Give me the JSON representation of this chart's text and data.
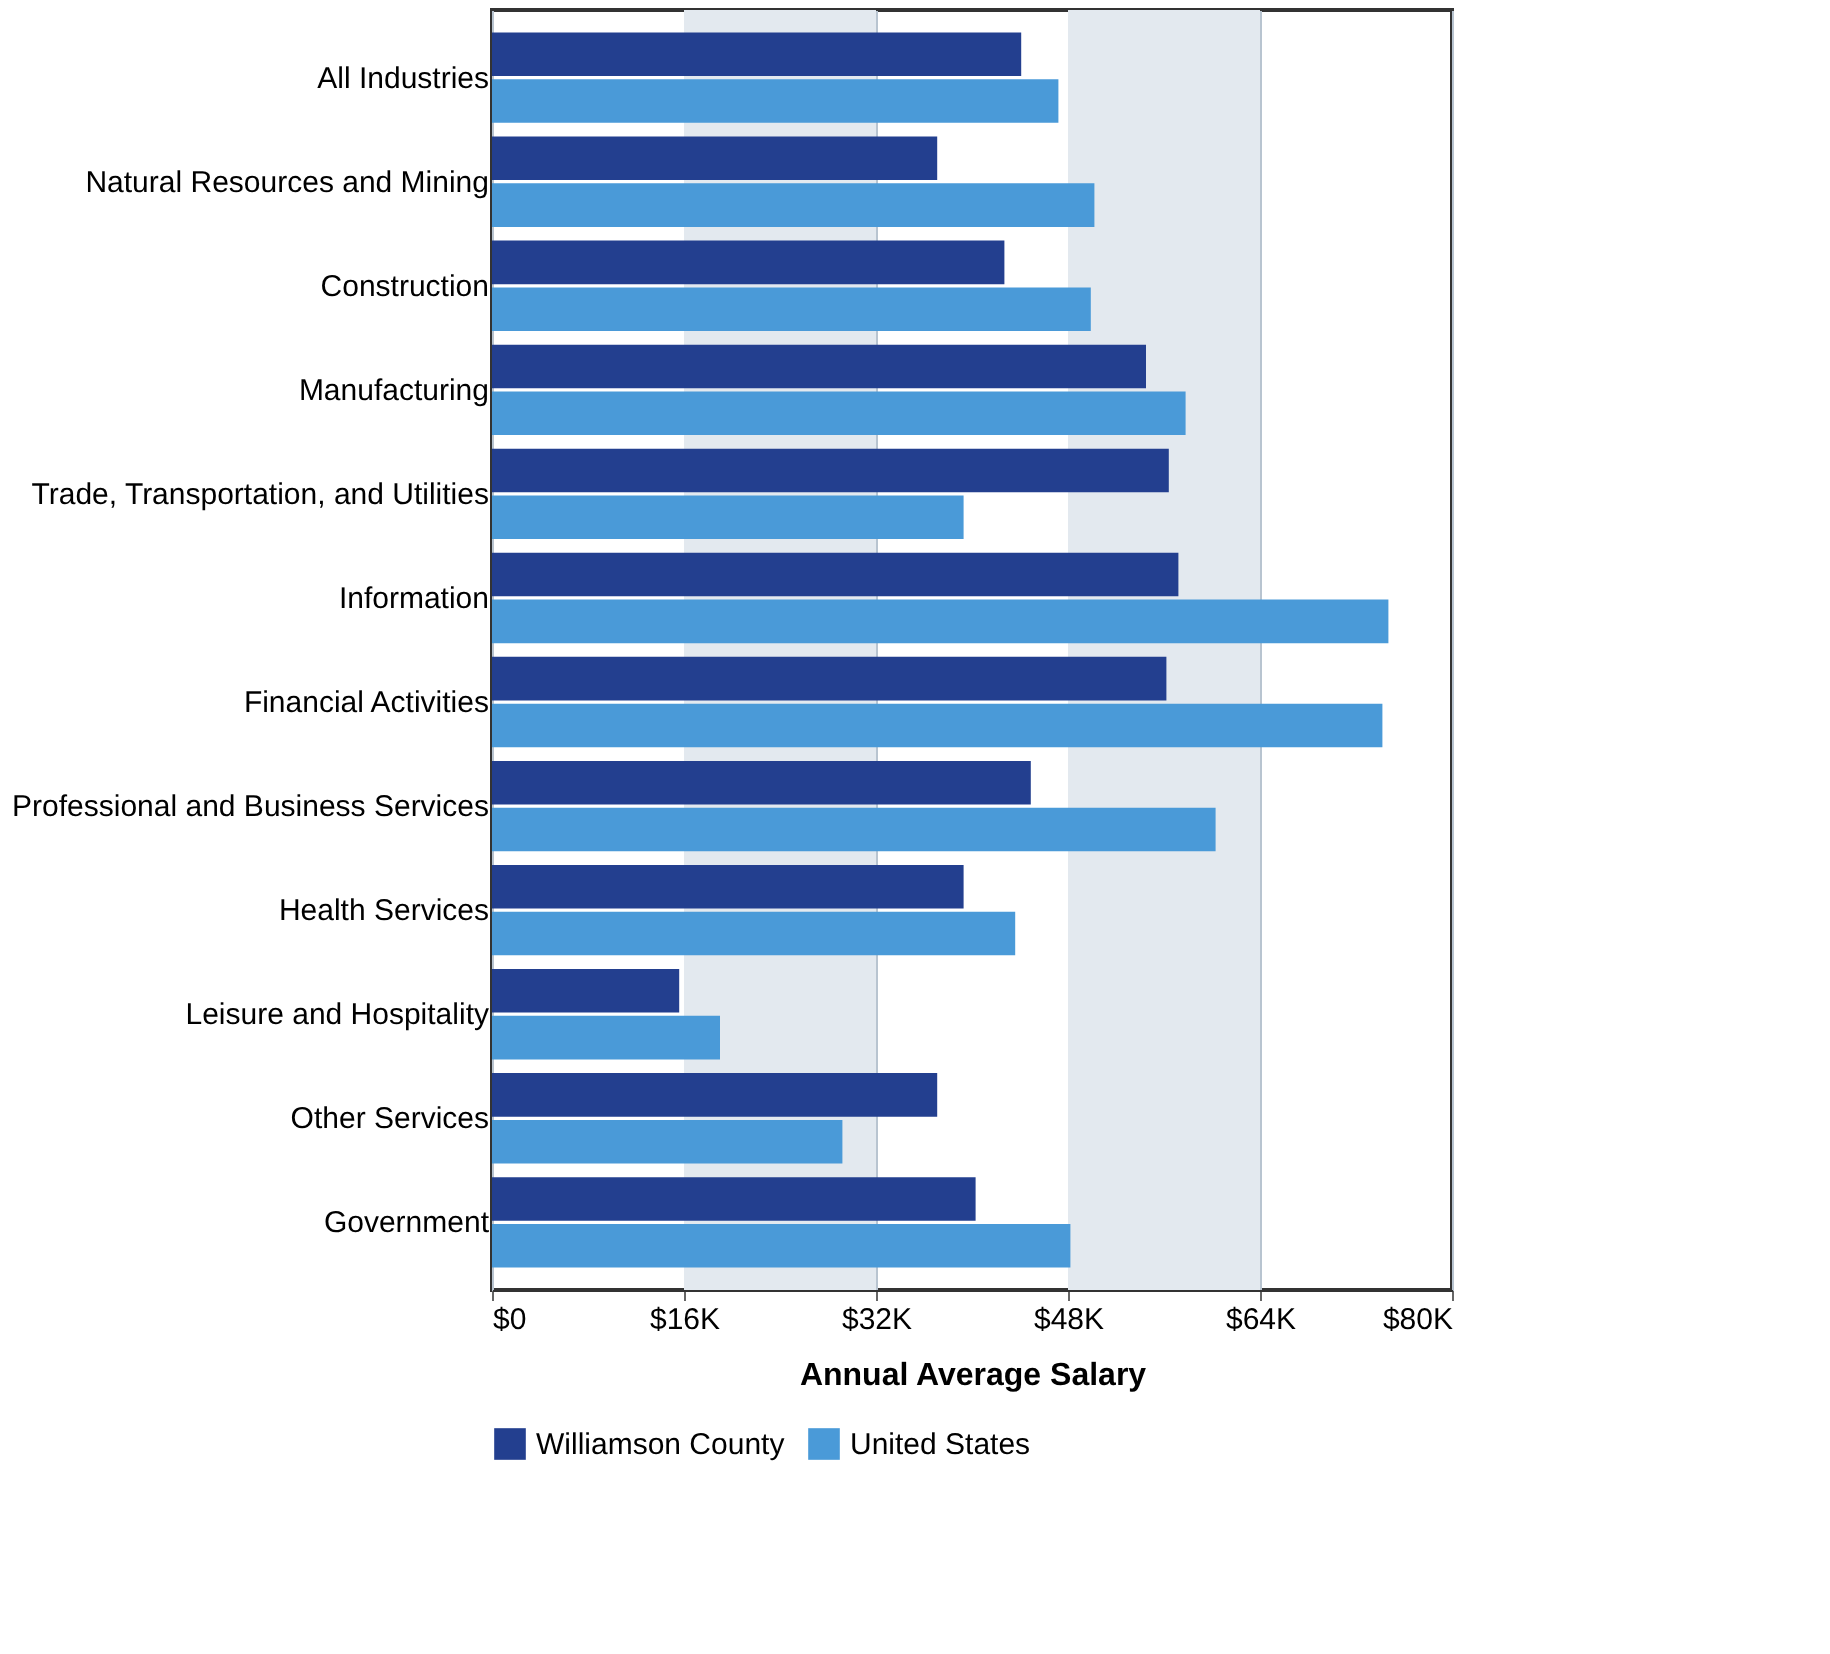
{
  "chart_data": {
    "type": "bar",
    "orientation": "horizontal",
    "xlabel": "Annual Average Salary",
    "categories": [
      "All Industries",
      "Natural Resources and Mining",
      "Construction",
      "Manufacturing",
      "Trade, Transportation, and Utilities",
      "Information",
      "Financial Activities",
      "Professional and Business Services",
      "Health Services",
      "Leisure and Hospitality",
      "Other Services",
      "Government"
    ],
    "series": [
      {
        "name": "Williamson County",
        "color": "#233f8f",
        "values": [
          44100,
          37100,
          42700,
          54500,
          56400,
          57200,
          56200,
          44900,
          39300,
          15600,
          37100,
          40300
        ]
      },
      {
        "name": "United States",
        "color": "#4a9ad8",
        "values": [
          47200,
          50200,
          49900,
          57800,
          39300,
          74700,
          74200,
          60300,
          43600,
          19000,
          29200,
          48200
        ]
      }
    ],
    "xlim": [
      0,
      80000
    ],
    "xticks": [
      {
        "value": 0,
        "label": "$0"
      },
      {
        "value": 16000,
        "label": "$16K"
      },
      {
        "value": 32000,
        "label": "$32K"
      },
      {
        "value": 48000,
        "label": "$48K"
      },
      {
        "value": 64000,
        "label": "$64K"
      },
      {
        "value": 80000,
        "label": "$80K"
      }
    ],
    "bands": [
      {
        "axis": "x",
        "from": 16000,
        "to": 32000,
        "color": "#e3e9ef"
      },
      {
        "axis": "x",
        "from": 48000,
        "to": 64000,
        "color": "#e3e9ef"
      }
    ],
    "grid": "x",
    "legend": "bottom"
  }
}
